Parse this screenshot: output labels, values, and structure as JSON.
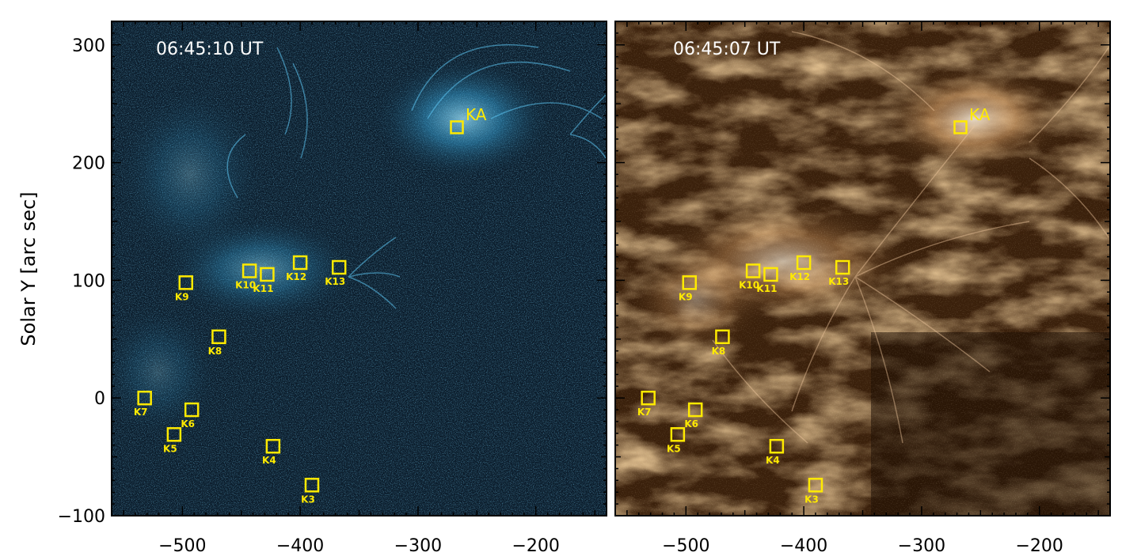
{
  "panels": [
    {
      "id": "left",
      "timestamp": "06:45:10 UT",
      "colormap": "blue",
      "base_color": "#0a1a28",
      "bright_color": "#5ad2ff"
    },
    {
      "id": "right",
      "timestamp": "06:45:07 UT",
      "colormap": "brown",
      "base_color": "#2a1606",
      "bright_color": "#fff0d8"
    }
  ],
  "axes": {
    "ylabel": "Solar Y [arc sec]",
    "xlim": [
      -560,
      -140
    ],
    "ylim": [
      -100,
      320
    ],
    "x_ticks": [
      -500,
      -400,
      -300,
      -200
    ],
    "x_tick_labels": [
      "−500",
      "−400",
      "−300",
      "−200"
    ],
    "y_ticks": [
      300,
      200,
      100,
      0,
      -100
    ],
    "y_tick_labels": [
      "300",
      "200",
      "100",
      "0",
      "−100"
    ]
  },
  "markers": [
    {
      "label": "KA",
      "x": -267,
      "y": 230,
      "big": true
    },
    {
      "label": "K13",
      "x": -367,
      "y": 111
    },
    {
      "label": "K12",
      "x": -400,
      "y": 115
    },
    {
      "label": "K11",
      "x": -428,
      "y": 105
    },
    {
      "label": "K10",
      "x": -443,
      "y": 108
    },
    {
      "label": "K9",
      "x": -497,
      "y": 98
    },
    {
      "label": "K8",
      "x": -469,
      "y": 52
    },
    {
      "label": "K7",
      "x": -532,
      "y": 0
    },
    {
      "label": "K6",
      "x": -492,
      "y": -10
    },
    {
      "label": "K5",
      "x": -507,
      "y": -31
    },
    {
      "label": "K4",
      "x": -423,
      "y": -41
    },
    {
      "label": "K3",
      "x": -390,
      "y": -74
    }
  ],
  "marker_color": "#ffea00"
}
